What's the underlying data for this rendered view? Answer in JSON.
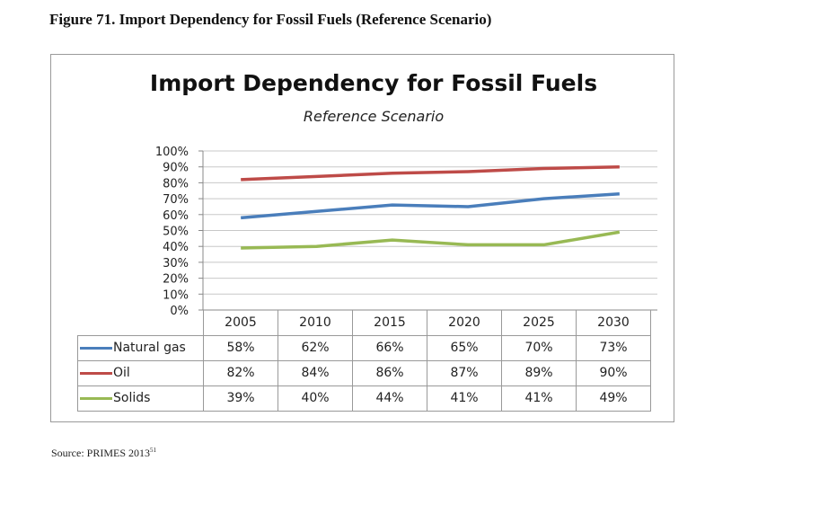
{
  "caption": "Figure 71. Import Dependency for Fossil Fuels (Reference Scenario)",
  "source": {
    "text": "Source: PRIMES 2013",
    "footnote": "51"
  },
  "chart_data": {
    "type": "line",
    "title": "Import Dependency for Fossil Fuels",
    "subtitle": "Reference Scenario",
    "categories": [
      "2005",
      "2010",
      "2015",
      "2020",
      "2025",
      "2030"
    ],
    "ylim": [
      0,
      100
    ],
    "yticks": [
      "0%",
      "10%",
      "20%",
      "30%",
      "40%",
      "50%",
      "60%",
      "70%",
      "80%",
      "90%",
      "100%"
    ],
    "grid": true,
    "legend": "data-table",
    "series": [
      {
        "name": "Natural gas",
        "color": "#4a7ebb",
        "values": [
          58,
          62,
          66,
          65,
          70,
          73
        ],
        "labels": [
          "58%",
          "62%",
          "66%",
          "65%",
          "70%",
          "73%"
        ]
      },
      {
        "name": "Oil",
        "color": "#be4b48",
        "values": [
          82,
          84,
          86,
          87,
          89,
          90
        ],
        "labels": [
          "82%",
          "84%",
          "86%",
          "87%",
          "89%",
          "90%"
        ]
      },
      {
        "name": "Solids",
        "color": "#98b954",
        "values": [
          39,
          40,
          44,
          41,
          41,
          49
        ],
        "labels": [
          "39%",
          "40%",
          "44%",
          "41%",
          "41%",
          "49%"
        ]
      }
    ]
  }
}
